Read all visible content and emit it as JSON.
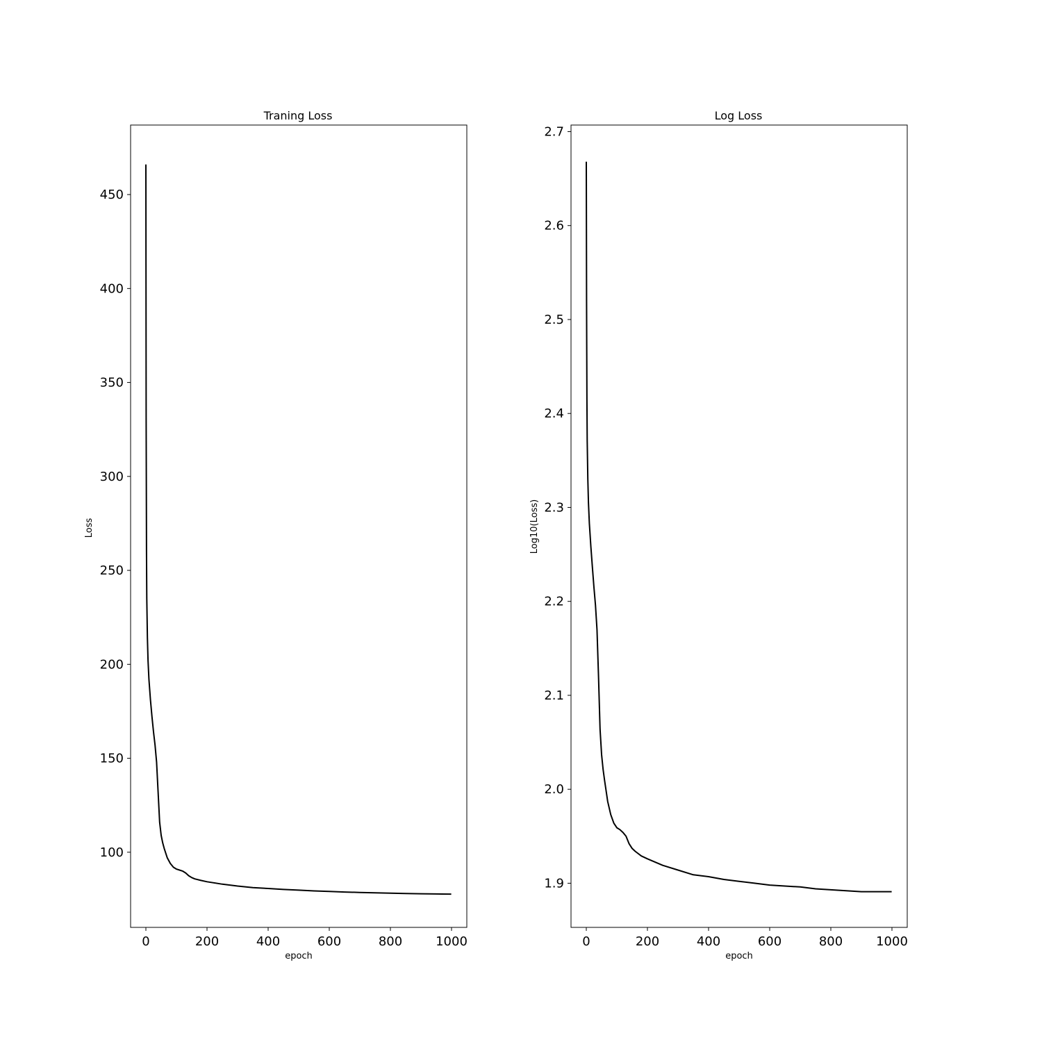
{
  "chart_data": [
    {
      "type": "line",
      "title": "Traning Loss",
      "xlabel": "epoch",
      "ylabel": "Loss",
      "xlim": [
        -50,
        1050
      ],
      "ylim": [
        60,
        487
      ],
      "xticks": [
        0,
        200,
        400,
        600,
        800,
        1000
      ],
      "yticks": [
        100,
        150,
        200,
        250,
        300,
        350,
        400,
        450
      ],
      "grid": false,
      "line_color": "#000000",
      "series": [
        {
          "x": [
            0,
            1,
            2,
            3,
            5,
            7,
            10,
            15,
            20,
            25,
            30,
            35,
            40,
            45,
            50,
            55,
            60,
            70,
            80,
            90,
            100,
            110,
            120,
            130,
            140,
            150,
            160,
            180,
            200,
            250,
            300,
            350,
            400,
            450,
            500,
            550,
            600,
            650,
            700,
            750,
            800,
            850,
            900,
            950,
            999
          ],
          "y": [
            466,
            330,
            260,
            235,
            214,
            202,
            192,
            181,
            172,
            164,
            157,
            148,
            132,
            116,
            109,
            105,
            102,
            97,
            94,
            92,
            91,
            90.5,
            90,
            89,
            87.5,
            86.5,
            85.8,
            85,
            84.3,
            83,
            82,
            81.2,
            80.7,
            80.2,
            79.8,
            79.4,
            79.1,
            78.8,
            78.6,
            78.4,
            78.2,
            78,
            77.9,
            77.8,
            77.7
          ]
        }
      ]
    },
    {
      "type": "line",
      "title": "Log Loss",
      "xlabel": "epoch",
      "ylabel": "Log10(Loss)",
      "xlim": [
        -50,
        1050
      ],
      "ylim": [
        1.853,
        2.707
      ],
      "xticks": [
        0,
        200,
        400,
        600,
        800,
        1000
      ],
      "yticks": [
        1.9,
        2.0,
        2.1,
        2.2,
        2.3,
        2.4,
        2.5,
        2.6,
        2.7
      ],
      "ytick_labels": [
        "1.9",
        "2.0",
        "2.1",
        "2.2",
        "2.3",
        "2.4",
        "2.5",
        "2.6",
        "2.7"
      ],
      "grid": false,
      "line_color": "#000000",
      "series": [
        {
          "x": [
            0,
            1,
            2,
            3,
            5,
            7,
            10,
            15,
            20,
            25,
            30,
            35,
            40,
            45,
            50,
            55,
            60,
            70,
            80,
            90,
            100,
            110,
            120,
            130,
            140,
            150,
            160,
            180,
            200,
            250,
            300,
            350,
            400,
            450,
            500,
            550,
            600,
            650,
            700,
            750,
            800,
            850,
            900,
            950,
            999
          ],
          "y": [
            2.668,
            2.518,
            2.415,
            2.371,
            2.33,
            2.305,
            2.283,
            2.258,
            2.236,
            2.215,
            2.196,
            2.17,
            2.12,
            2.064,
            2.037,
            2.021,
            2.009,
            1.987,
            1.973,
            1.964,
            1.959,
            1.957,
            1.954,
            1.95,
            1.942,
            1.937,
            1.934,
            1.929,
            1.926,
            1.919,
            1.914,
            1.909,
            1.907,
            1.904,
            1.902,
            1.9,
            1.898,
            1.897,
            1.896,
            1.894,
            1.893,
            1.892,
            1.891,
            1.891,
            1.891
          ]
        }
      ]
    }
  ]
}
